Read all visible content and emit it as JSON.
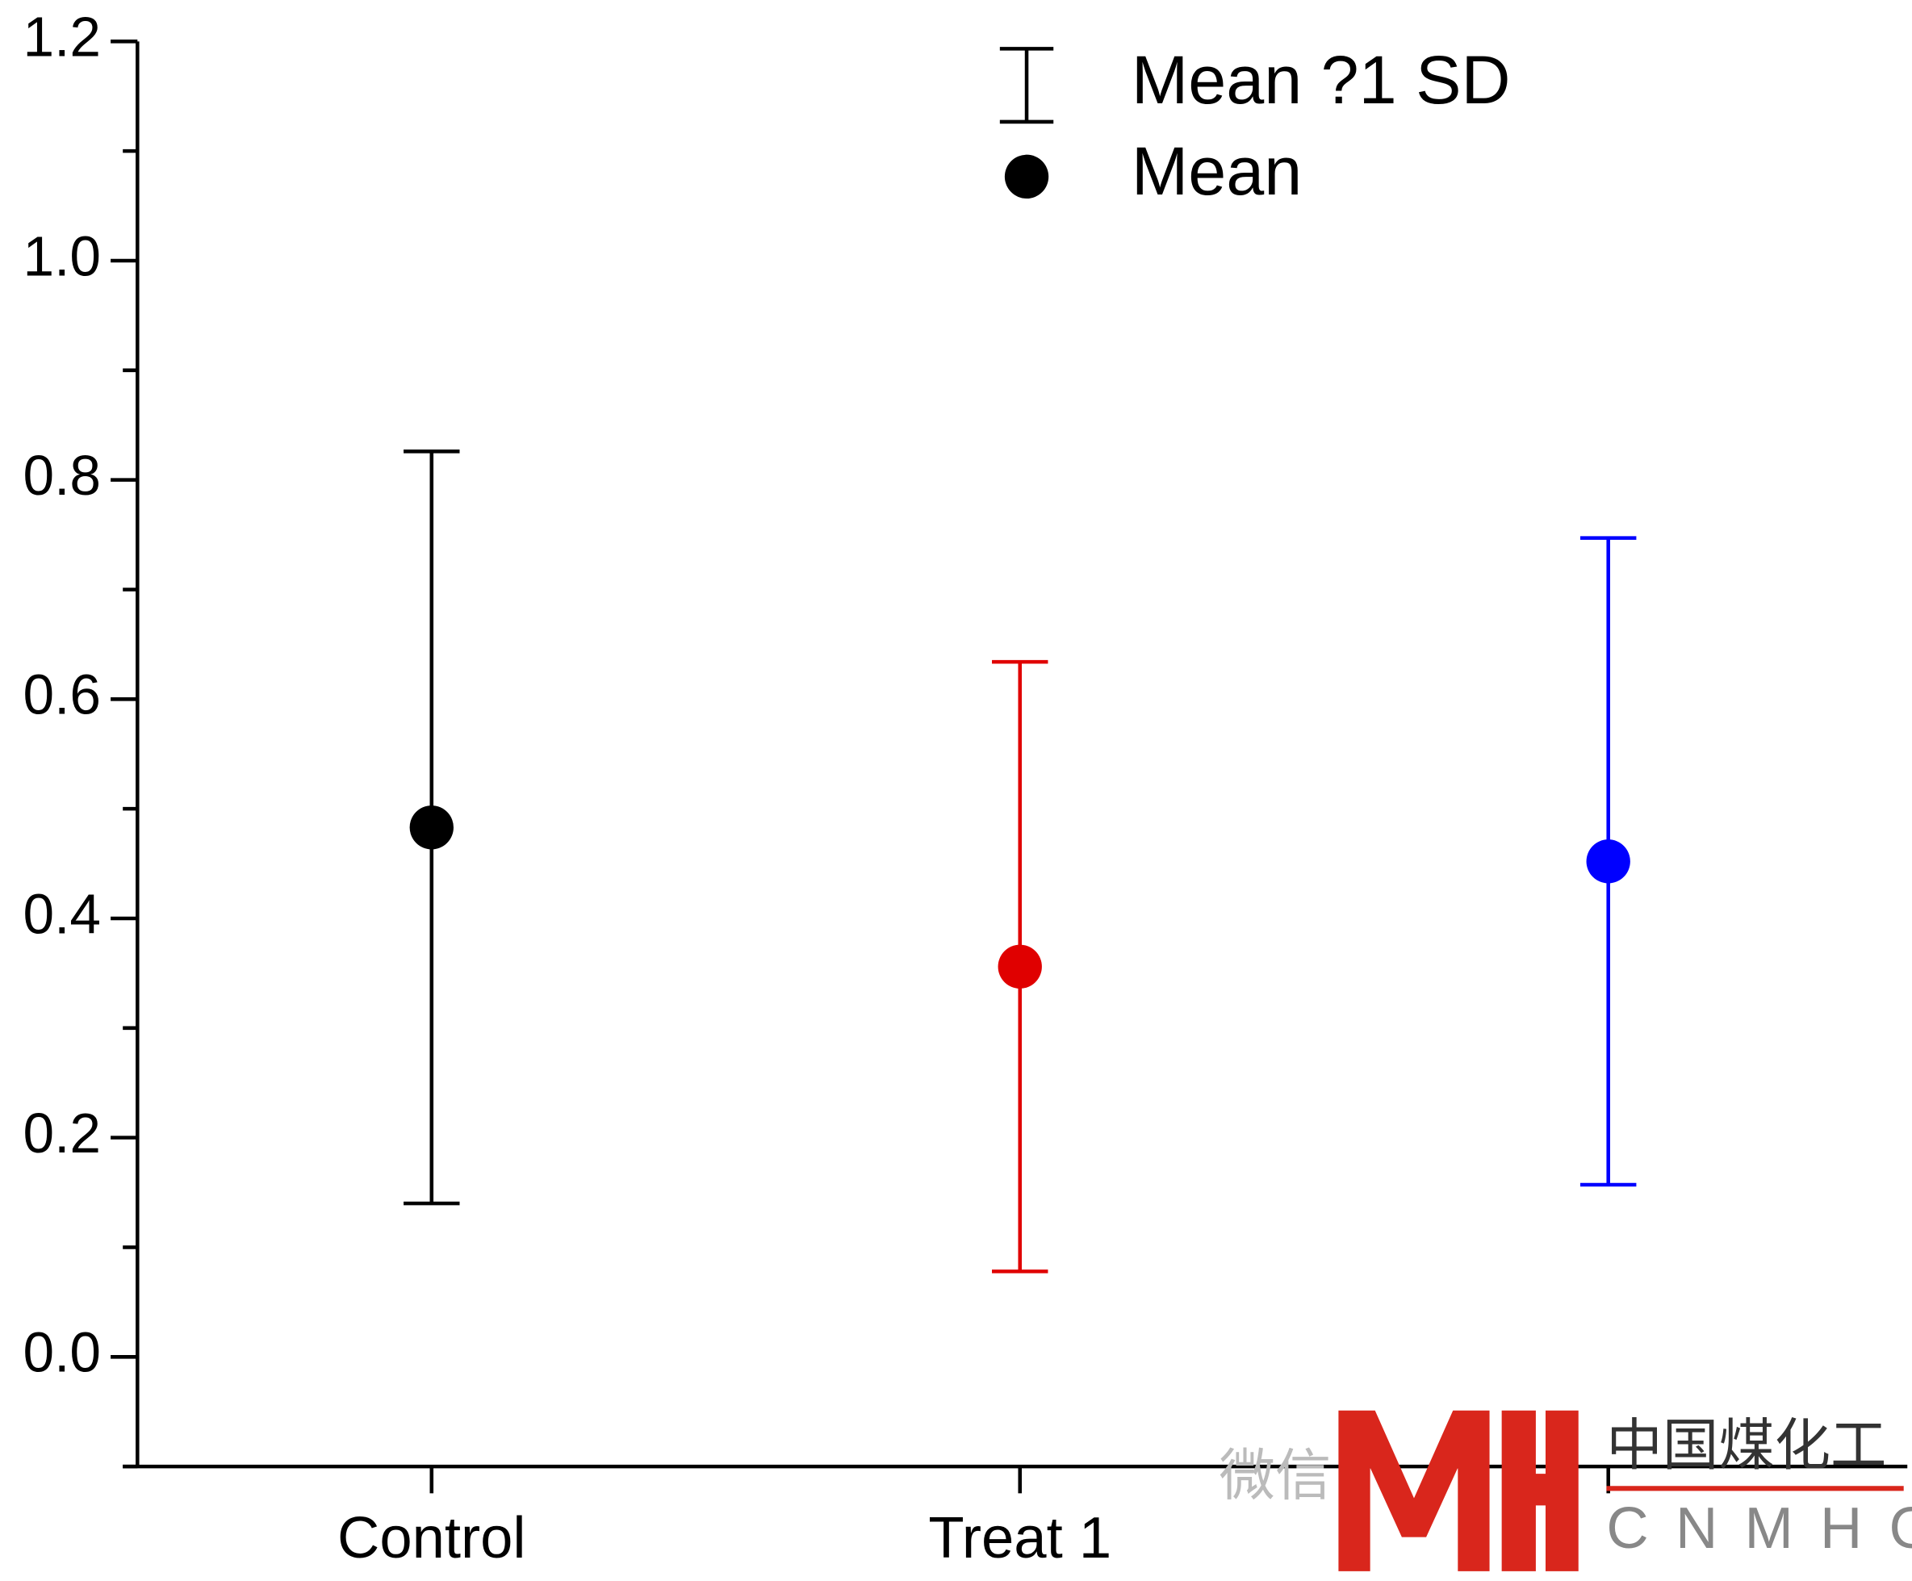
{
  "chart_data": {
    "type": "errorbar",
    "categories": [
      "Control",
      "Treat 1",
      null
    ],
    "values": [
      0.483,
      0.356,
      0.452
    ],
    "errors": [
      0.343,
      0.278,
      0.295
    ],
    "colors": [
      "#000000",
      "#e00000",
      "#0000ff"
    ],
    "ylim": [
      -0.1,
      1.2
    ],
    "yticks": [
      {
        "value": 0,
        "label": "0.0"
      },
      0.2,
      0.4,
      0.6,
      0.8,
      {
        "value": 1,
        "label": "1.0"
      },
      1.2
    ],
    "yminorticks": [
      -0.1,
      0.1,
      0.3,
      0.5,
      0.7,
      0.9,
      1.1
    ],
    "legend": [
      "Mean ?1 SD",
      "Mean"
    ],
    "legend_position": "top",
    "watermark": [
      "微信",
      "中国煤化工",
      "CNMHG"
    ]
  }
}
